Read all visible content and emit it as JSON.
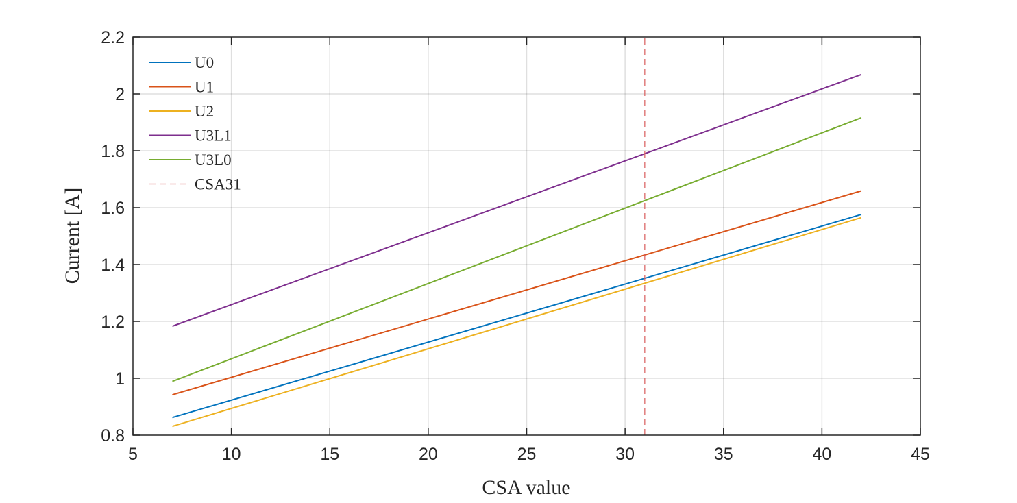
{
  "chart_data": {
    "type": "line",
    "xlabel": "CSA value",
    "ylabel": "Current [A]",
    "xlim": [
      5,
      45
    ],
    "ylim": [
      0.8,
      2.2
    ],
    "xticks": [
      "5",
      "10",
      "15",
      "20",
      "25",
      "30",
      "35",
      "40",
      "45"
    ],
    "yticks": [
      "0.8",
      "1",
      "1.2",
      "1.4",
      "1.6",
      "1.8",
      "2",
      "2.2"
    ],
    "grid": true,
    "legend_position": "top-left",
    "series": [
      {
        "name": "U0",
        "color": "#0072BD",
        "style": "solid",
        "x": [
          7,
          42
        ],
        "y": [
          0.862,
          1.576
        ]
      },
      {
        "name": "U1",
        "color": "#D95319",
        "style": "solid",
        "x": [
          7,
          42
        ],
        "y": [
          0.942,
          1.659
        ]
      },
      {
        "name": "U2",
        "color": "#EDB120",
        "style": "solid",
        "x": [
          7,
          42
        ],
        "y": [
          0.831,
          1.565
        ]
      },
      {
        "name": "U3L1",
        "color": "#7E2F8E",
        "style": "solid",
        "x": [
          7,
          42
        ],
        "y": [
          1.183,
          2.068
        ]
      },
      {
        "name": "U3L0",
        "color": "#77AC30",
        "style": "solid",
        "x": [
          7,
          42
        ],
        "y": [
          0.989,
          1.916
        ]
      },
      {
        "name": "CSA31",
        "color": "#D95C5C",
        "style": "dashed",
        "x": [
          31,
          31
        ],
        "y": [
          0.8,
          2.2
        ]
      }
    ]
  }
}
